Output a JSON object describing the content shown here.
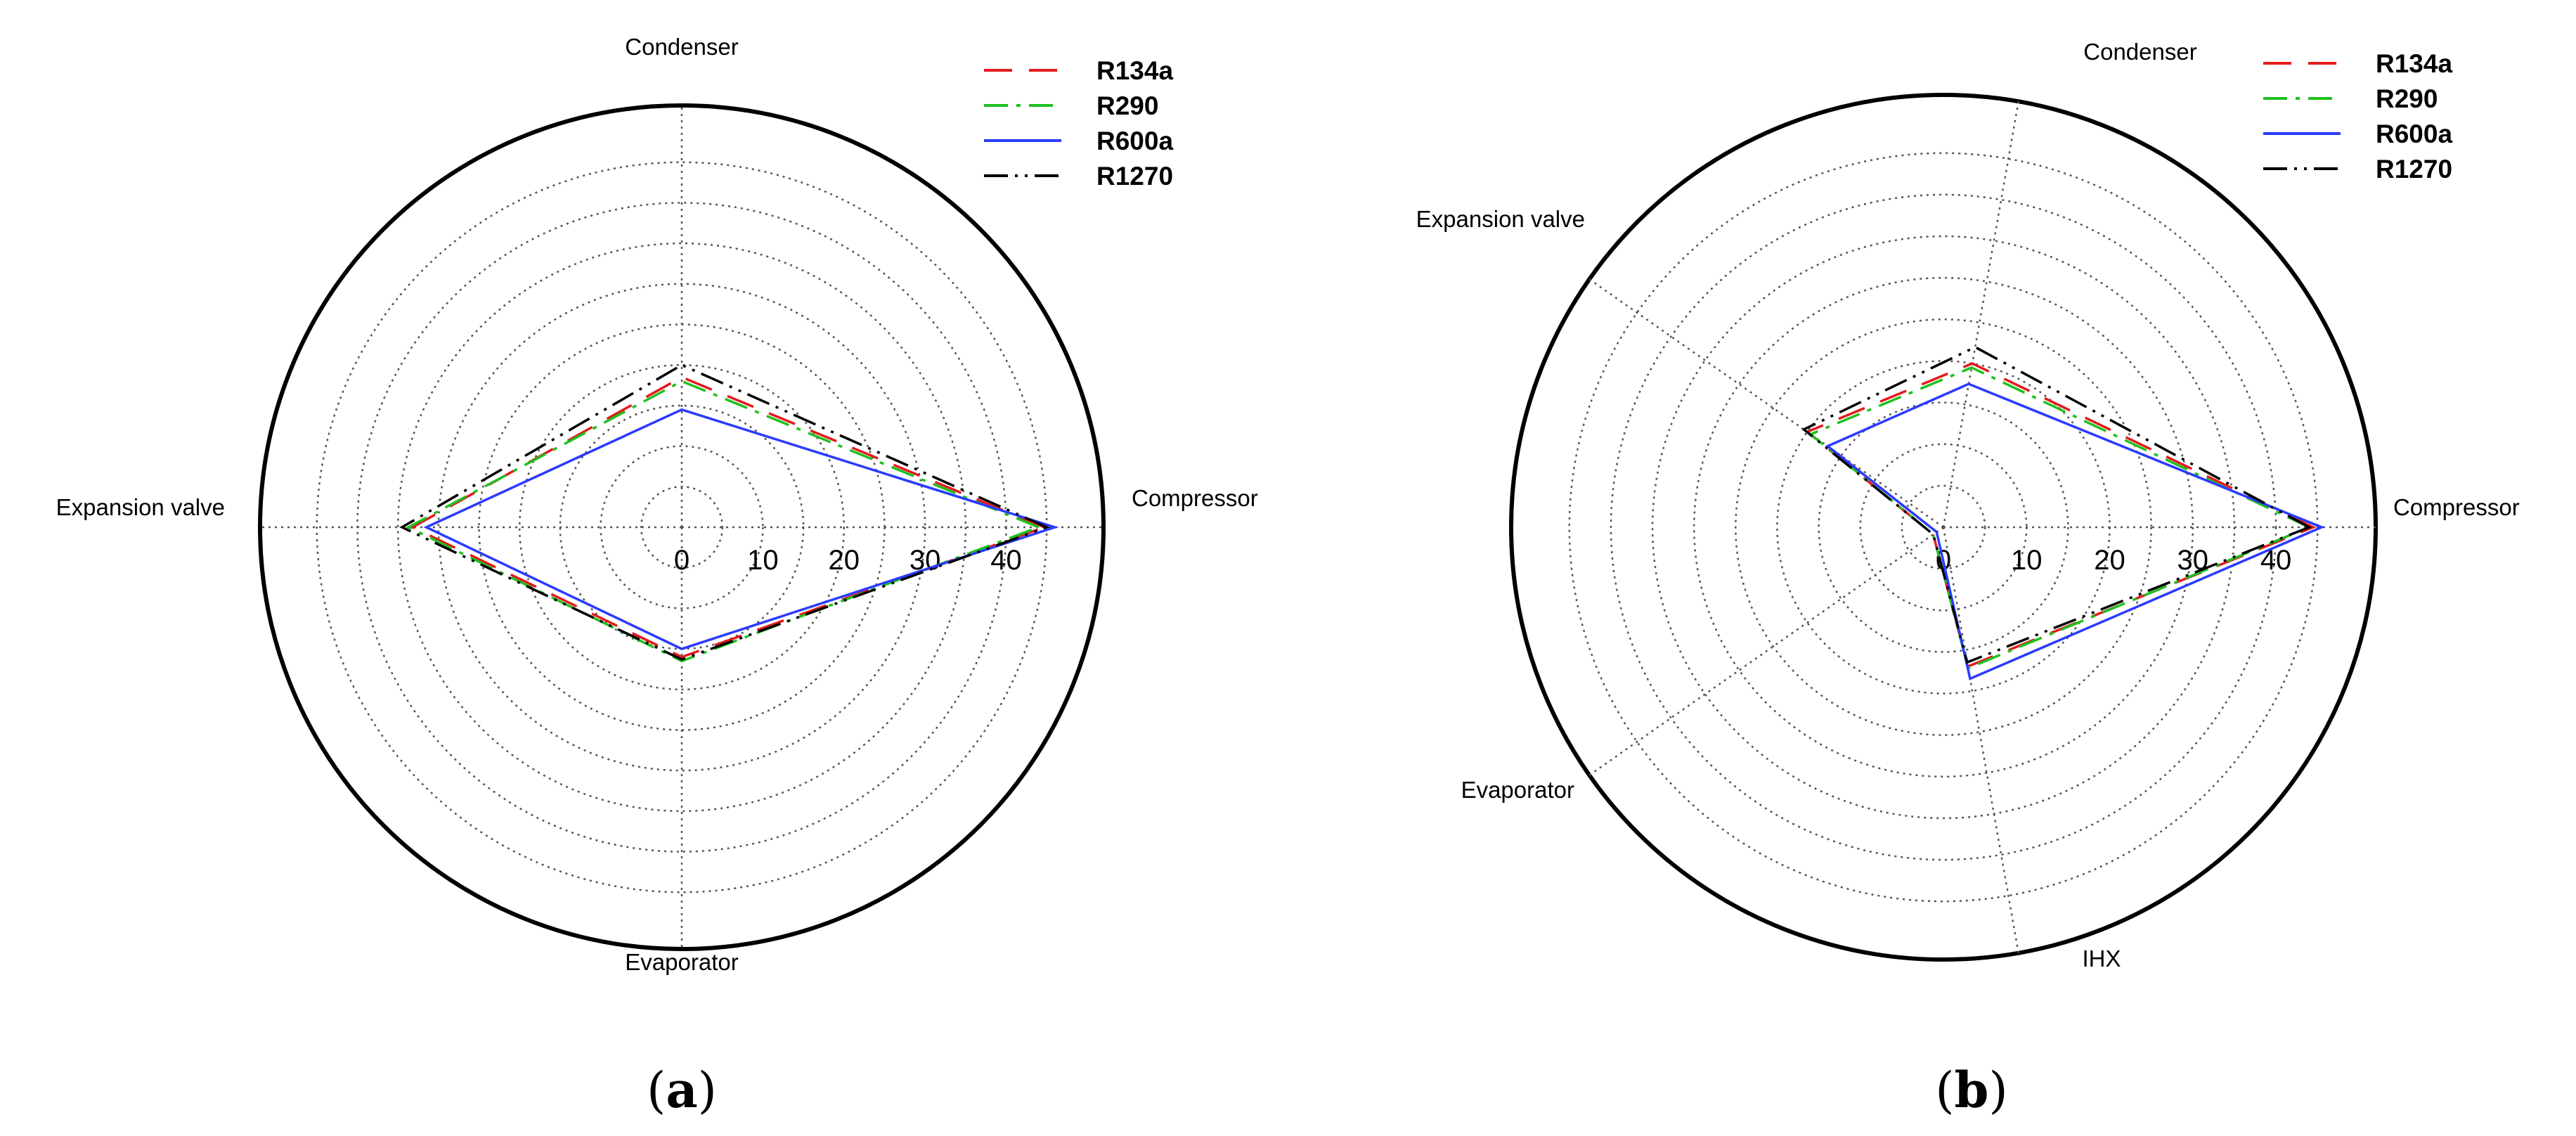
{
  "chart_data": [
    {
      "type": "radar",
      "panel_label": "a",
      "axes": [
        "Compressor",
        "Condenser",
        "Expansion valve",
        "Evaporator"
      ],
      "angles_deg": [
        0,
        90,
        180,
        270
      ],
      "r_ticks": [
        0,
        10,
        20,
        30,
        40
      ],
      "r_max": 52,
      "r_rings": [
        5,
        10,
        15,
        20,
        25,
        30,
        35,
        40,
        45,
        52
      ],
      "legend_position": "top-right",
      "series": [
        {
          "name": "R134a",
          "color": "#e41a1c",
          "dash": "40 24",
          "values": [
            44.7,
            18.5,
            33.2,
            16.0
          ]
        },
        {
          "name": "R290",
          "color": "#1fc01f",
          "dash": "34 12 6 12",
          "values": [
            44.0,
            18.0,
            33.7,
            16.5
          ]
        },
        {
          "name": "R600a",
          "color": "#2a3bff",
          "dash": "",
          "values": [
            46.0,
            14.5,
            31.5,
            15.0
          ]
        },
        {
          "name": "R1270",
          "color": "#000000",
          "dash": "34 10 4 10 4 10",
          "values": [
            45.0,
            20.0,
            34.5,
            16.3
          ]
        }
      ]
    },
    {
      "type": "radar",
      "panel_label": "b",
      "axes": [
        "Compressor",
        "Condenser",
        "Expansion valve",
        "Evaporator",
        "IHX"
      ],
      "angles_deg": [
        0,
        80,
        145,
        215,
        280
      ],
      "r_ticks": [
        0,
        10,
        20,
        30,
        40
      ],
      "r_max": 52,
      "r_rings": [
        5,
        10,
        15,
        20,
        25,
        30,
        35,
        40,
        45,
        52
      ],
      "legend_position": "top-right",
      "series": [
        {
          "name": "R134a",
          "color": "#e41a1c",
          "dash": "40 24",
          "values": [
            44.5,
            20.0,
            20.0,
            1.5,
            17.0
          ]
        },
        {
          "name": "R290",
          "color": "#1fc01f",
          "dash": "34 12 6 12",
          "values": [
            44.0,
            19.5,
            19.5,
            1.5,
            17.2
          ]
        },
        {
          "name": "R600a",
          "color": "#2a3bff",
          "dash": "",
          "values": [
            45.5,
            17.5,
            17.0,
            1.0,
            18.5
          ]
        },
        {
          "name": "R1270",
          "color": "#000000",
          "dash": "34 10 4 10 4 10",
          "values": [
            44.0,
            22.0,
            20.5,
            1.5,
            16.5
          ]
        }
      ]
    }
  ]
}
